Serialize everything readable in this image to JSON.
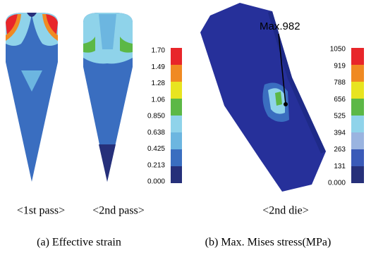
{
  "panel_a": {
    "views": [
      "<1st pass>",
      "<2nd pass>"
    ],
    "legend": [
      "1.70",
      "1.49",
      "1.28",
      "1.06",
      "0.850",
      "0.638",
      "0.425",
      "0.213",
      "0.000"
    ],
    "caption": "(a) Effective strain"
  },
  "panel_b": {
    "views": [
      "<2nd die>"
    ],
    "annotation": "Max.982",
    "legend": [
      "1050",
      "919",
      "788",
      "656",
      "525",
      "394",
      "263",
      "131",
      "0.000"
    ],
    "caption": "(b) Max. Mises stress(MPa)"
  }
}
